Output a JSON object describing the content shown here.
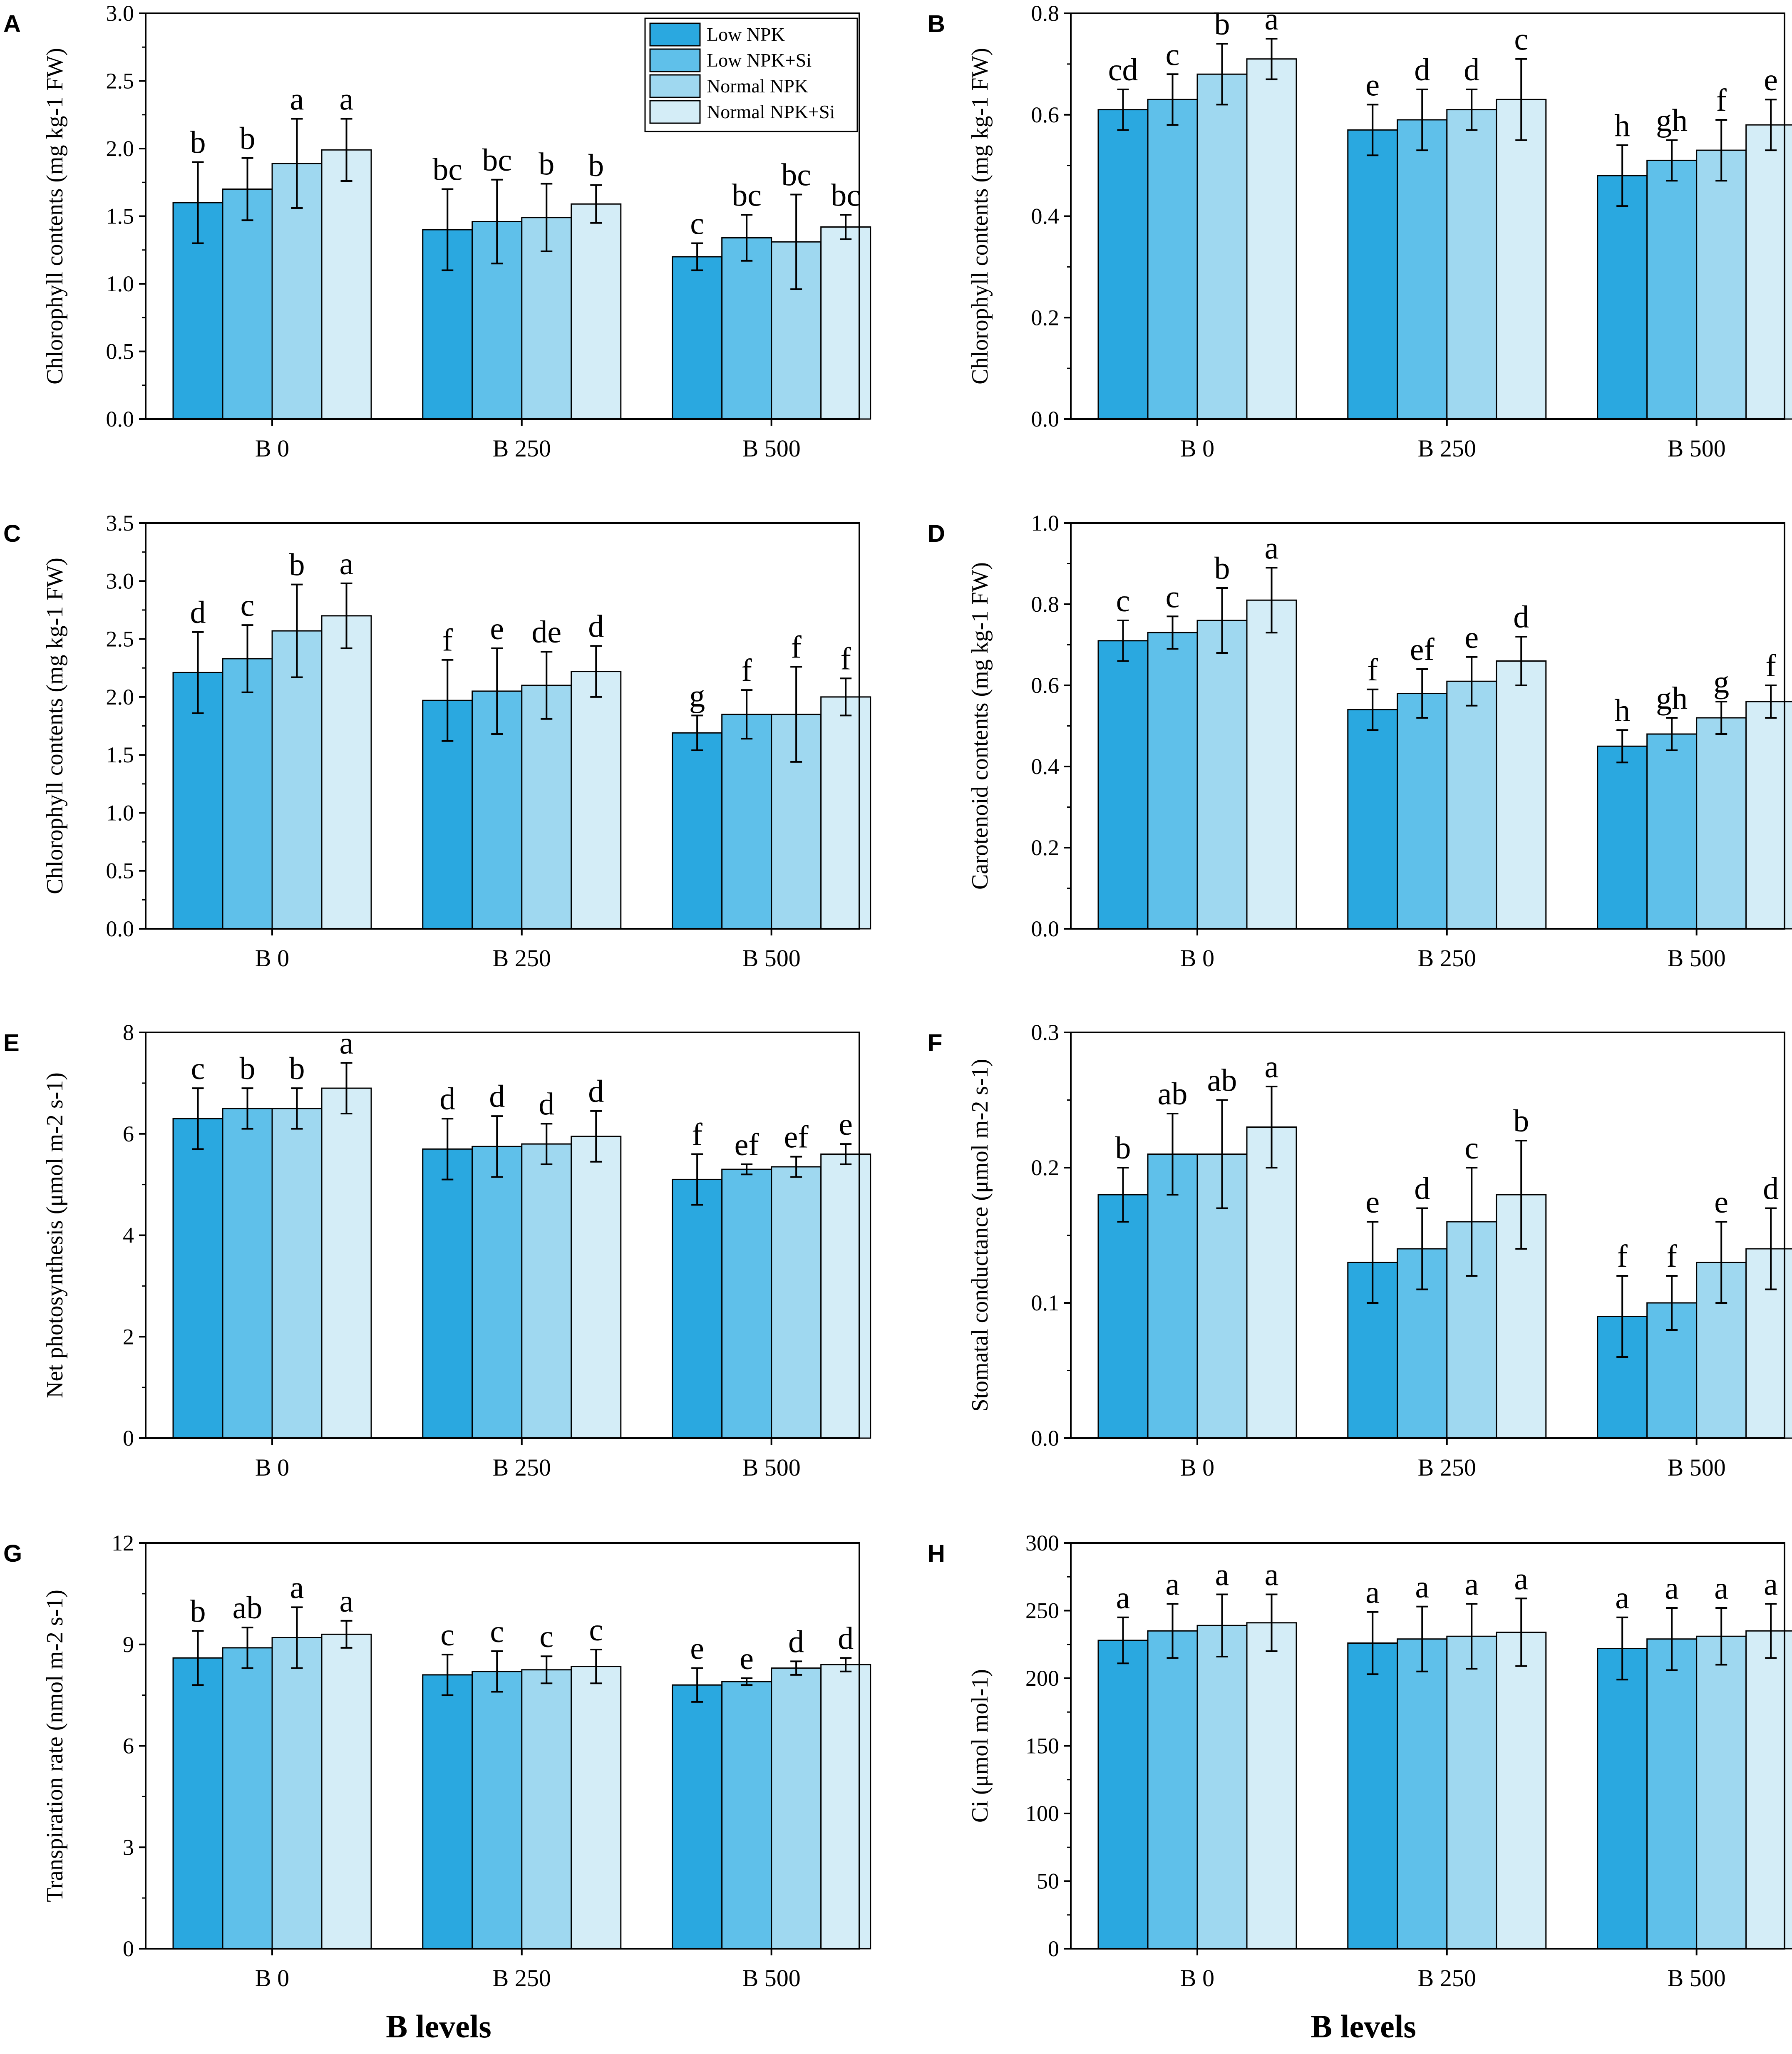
{
  "figure": {
    "legend": [
      "Low NPK",
      "Low NPK+Si",
      "Normal NPK",
      "Normal NPK+Si"
    ],
    "xlabel_bottom_left": "B levels",
    "xlabel_bottom_right": "B levels"
  },
  "colors": {
    "series": [
      "#2aa8e0",
      "#5fc0ea",
      "#9fd8f0",
      "#d4edf7"
    ],
    "axis": "#000000",
    "background": "#ffffff"
  },
  "chart_data": [
    {
      "panel": "A",
      "type": "bar",
      "ylabel": "Chlorophyll contents (mg kg-1 FW)",
      "ylim": [
        0,
        3.0
      ],
      "yticks": [
        0.0,
        0.5,
        1.0,
        1.5,
        2.0,
        2.5,
        3.0
      ],
      "ytick_labels": [
        "0.0",
        "0.5",
        "1.0",
        "1.5",
        "2.0",
        "2.5",
        "3.0"
      ],
      "categories": [
        "B 0",
        "B 250",
        "B 500"
      ],
      "legend": true,
      "series": [
        {
          "name": "Low NPK",
          "values": [
            1.6,
            1.4,
            1.2
          ],
          "errors": [
            0.3,
            0.3,
            0.1
          ],
          "letters": [
            "b",
            "bc",
            "c"
          ]
        },
        {
          "name": "Low NPK+Si",
          "values": [
            1.7,
            1.46,
            1.34
          ],
          "errors": [
            0.23,
            0.31,
            0.17
          ],
          "letters": [
            "b",
            "bc",
            "bc"
          ]
        },
        {
          "name": "Normal NPK",
          "values": [
            1.89,
            1.49,
            1.31
          ],
          "errors": [
            0.33,
            0.25,
            0.35
          ],
          "letters": [
            "a",
            "b",
            "bc"
          ]
        },
        {
          "name": "Normal NPK+Si",
          "values": [
            1.99,
            1.59,
            1.42
          ],
          "errors": [
            0.23,
            0.14,
            0.09
          ],
          "letters": [
            "a",
            "b",
            "bc"
          ]
        }
      ]
    },
    {
      "panel": "B",
      "type": "bar",
      "ylabel": "Chlorophyll contents (mg kg-1 FW)",
      "ylim": [
        0,
        0.8
      ],
      "yticks": [
        0.0,
        0.2,
        0.4,
        0.6,
        0.8
      ],
      "ytick_labels": [
        "0.0",
        "0.2",
        "0.4",
        "0.6",
        "0.8"
      ],
      "categories": [
        "B 0",
        "B 250",
        "B 500"
      ],
      "legend": false,
      "series": [
        {
          "name": "Low NPK",
          "values": [
            0.61,
            0.57,
            0.48
          ],
          "errors": [
            0.04,
            0.05,
            0.06
          ],
          "letters": [
            "cd",
            "e",
            "h"
          ]
        },
        {
          "name": "Low NPK+Si",
          "values": [
            0.63,
            0.59,
            0.51
          ],
          "errors": [
            0.05,
            0.06,
            0.04
          ],
          "letters": [
            "c",
            "d",
            "gh"
          ]
        },
        {
          "name": "Normal NPK",
          "values": [
            0.68,
            0.61,
            0.53
          ],
          "errors": [
            0.06,
            0.04,
            0.06
          ],
          "letters": [
            "b",
            "d",
            "f"
          ]
        },
        {
          "name": "Normal NPK+Si",
          "values": [
            0.71,
            0.63,
            0.58
          ],
          "errors": [
            0.04,
            0.08,
            0.05
          ],
          "letters": [
            "a",
            "c",
            "e"
          ]
        }
      ]
    },
    {
      "panel": "C",
      "type": "bar",
      "ylabel": "Chlorophyll contents (mg kg-1 FW)",
      "ylim": [
        0,
        3.5
      ],
      "yticks": [
        0.0,
        0.5,
        1.0,
        1.5,
        2.0,
        2.5,
        3.0,
        3.5
      ],
      "ytick_labels": [
        "0.0",
        "0.5",
        "1.0",
        "1.5",
        "2.0",
        "2.5",
        "3.0",
        "3.5"
      ],
      "categories": [
        "B 0",
        "B 250",
        "B 500"
      ],
      "legend": false,
      "series": [
        {
          "name": "Low NPK",
          "values": [
            2.21,
            1.97,
            1.69
          ],
          "errors": [
            0.35,
            0.35,
            0.15
          ],
          "letters": [
            "d",
            "f",
            "g"
          ]
        },
        {
          "name": "Low NPK+Si",
          "values": [
            2.33,
            2.05,
            1.85
          ],
          "errors": [
            0.29,
            0.37,
            0.21
          ],
          "letters": [
            "c",
            "e",
            "f"
          ]
        },
        {
          "name": "Normal NPK",
          "values": [
            2.57,
            2.1,
            1.85
          ],
          "errors": [
            0.4,
            0.29,
            0.41
          ],
          "letters": [
            "b",
            "de",
            "f"
          ]
        },
        {
          "name": "Normal NPK+Si",
          "values": [
            2.7,
            2.22,
            2.0
          ],
          "errors": [
            0.28,
            0.22,
            0.16
          ],
          "letters": [
            "a",
            "d",
            "f"
          ]
        }
      ]
    },
    {
      "panel": "D",
      "type": "bar",
      "ylabel": "Carotenoid contents (mg kg-1 FW)",
      "ylim": [
        0,
        1.0
      ],
      "yticks": [
        0.0,
        0.2,
        0.4,
        0.6,
        0.8,
        1.0
      ],
      "ytick_labels": [
        "0.0",
        "0.2",
        "0.4",
        "0.6",
        "0.8",
        "1.0"
      ],
      "categories": [
        "B 0",
        "B 250",
        "B 500"
      ],
      "legend": false,
      "series": [
        {
          "name": "Low NPK",
          "values": [
            0.71,
            0.54,
            0.45
          ],
          "errors": [
            0.05,
            0.05,
            0.04
          ],
          "letters": [
            "c",
            "f",
            "h"
          ]
        },
        {
          "name": "Low NPK+Si",
          "values": [
            0.73,
            0.58,
            0.48
          ],
          "errors": [
            0.04,
            0.06,
            0.04
          ],
          "letters": [
            "c",
            "ef",
            "gh"
          ]
        },
        {
          "name": "Normal NPK",
          "values": [
            0.76,
            0.61,
            0.52
          ],
          "errors": [
            0.08,
            0.06,
            0.04
          ],
          "letters": [
            "b",
            "e",
            "g"
          ]
        },
        {
          "name": "Normal NPK+Si",
          "values": [
            0.81,
            0.66,
            0.56
          ],
          "errors": [
            0.08,
            0.06,
            0.04
          ],
          "letters": [
            "a",
            "d",
            "f"
          ]
        }
      ]
    },
    {
      "panel": "E",
      "type": "bar",
      "ylabel": "Net photosynthesis (μmol m-2 s-1)",
      "ylim": [
        0,
        8
      ],
      "yticks": [
        0,
        2,
        4,
        6,
        8
      ],
      "ytick_labels": [
        "0",
        "2",
        "4",
        "6",
        "8"
      ],
      "categories": [
        "B 0",
        "B 250",
        "B 500"
      ],
      "legend": false,
      "series": [
        {
          "name": "Low NPK",
          "values": [
            6.3,
            5.7,
            5.1
          ],
          "errors": [
            0.6,
            0.6,
            0.5
          ],
          "letters": [
            "c",
            "d",
            "f"
          ]
        },
        {
          "name": "Low NPK+Si",
          "values": [
            6.5,
            5.75,
            5.3
          ],
          "errors": [
            0.4,
            0.6,
            0.1
          ],
          "letters": [
            "b",
            "d",
            "ef"
          ]
        },
        {
          "name": "Normal NPK",
          "values": [
            6.5,
            5.8,
            5.35
          ],
          "errors": [
            0.4,
            0.4,
            0.2
          ],
          "letters": [
            "b",
            "d",
            "ef"
          ]
        },
        {
          "name": "Normal NPK+Si",
          "values": [
            6.9,
            5.95,
            5.6
          ],
          "errors": [
            0.5,
            0.5,
            0.2
          ],
          "letters": [
            "a",
            "d",
            "e"
          ]
        }
      ]
    },
    {
      "panel": "F",
      "type": "bar",
      "ylabel": "Stomatal conductance (μmol m-2 s-1)",
      "ylim": [
        0,
        0.3
      ],
      "yticks": [
        0.0,
        0.1,
        0.2,
        0.3
      ],
      "ytick_labels": [
        "0.0",
        "0.1",
        "0.2",
        "0.3"
      ],
      "categories": [
        "B 0",
        "B 250",
        "B 500"
      ],
      "legend": false,
      "series": [
        {
          "name": "Low NPK",
          "values": [
            0.18,
            0.13,
            0.09
          ],
          "errors": [
            0.02,
            0.03,
            0.03
          ],
          "letters": [
            "b",
            "e",
            "f"
          ]
        },
        {
          "name": "Low NPK+Si",
          "values": [
            0.21,
            0.14,
            0.1
          ],
          "errors": [
            0.03,
            0.03,
            0.02
          ],
          "letters": [
            "ab",
            "d",
            "f"
          ]
        },
        {
          "name": "Normal NPK",
          "values": [
            0.21,
            0.16,
            0.13
          ],
          "errors": [
            0.04,
            0.04,
            0.03
          ],
          "letters": [
            "ab",
            "c",
            "e"
          ]
        },
        {
          "name": "Normal NPK+Si",
          "values": [
            0.23,
            0.18,
            0.14
          ],
          "errors": [
            0.03,
            0.04,
            0.03
          ],
          "letters": [
            "a",
            "b",
            "d"
          ]
        }
      ]
    },
    {
      "panel": "G",
      "type": "bar",
      "ylabel": "Transpiration rate (nmol m-2 s-1)",
      "ylim": [
        0,
        12
      ],
      "yticks": [
        0,
        3,
        6,
        9,
        12
      ],
      "ytick_labels": [
        "0",
        "3",
        "6",
        "9",
        "12"
      ],
      "categories": [
        "B 0",
        "B 250",
        "B 500"
      ],
      "legend": false,
      "series": [
        {
          "name": "Low NPK",
          "values": [
            8.6,
            8.1,
            7.8
          ],
          "errors": [
            0.8,
            0.6,
            0.5
          ],
          "letters": [
            "b",
            "c",
            "e"
          ]
        },
        {
          "name": "Low NPK+Si",
          "values": [
            8.9,
            8.2,
            7.9
          ],
          "errors": [
            0.6,
            0.6,
            0.1
          ],
          "letters": [
            "ab",
            "c",
            "e"
          ]
        },
        {
          "name": "Normal NPK",
          "values": [
            9.2,
            8.25,
            8.3
          ],
          "errors": [
            0.9,
            0.4,
            0.2
          ],
          "letters": [
            "a",
            "c",
            "d"
          ]
        },
        {
          "name": "Normal NPK+Si",
          "values": [
            9.3,
            8.35,
            8.4
          ],
          "errors": [
            0.4,
            0.5,
            0.2
          ],
          "letters": [
            "a",
            "c",
            "d"
          ]
        }
      ]
    },
    {
      "panel": "H",
      "type": "bar",
      "ylabel": "Ci (μmol mol-1)",
      "ylim": [
        0,
        300
      ],
      "yticks": [
        0,
        50,
        100,
        150,
        200,
        250,
        300
      ],
      "ytick_labels": [
        "0",
        "50",
        "100",
        "150",
        "200",
        "250",
        "300"
      ],
      "categories": [
        "B 0",
        "B 250",
        "B 500"
      ],
      "legend": false,
      "series": [
        {
          "name": "Low NPK",
          "values": [
            228,
            226,
            222
          ],
          "errors": [
            17,
            23,
            23
          ],
          "letters": [
            "a",
            "a",
            "a"
          ]
        },
        {
          "name": "Low NPK+Si",
          "values": [
            235,
            229,
            229
          ],
          "errors": [
            20,
            24,
            23
          ],
          "letters": [
            "a",
            "a",
            "a"
          ]
        },
        {
          "name": "Normal NPK",
          "values": [
            239,
            231,
            231
          ],
          "errors": [
            23,
            24,
            21
          ],
          "letters": [
            "a",
            "a",
            "a"
          ]
        },
        {
          "name": "Normal NPK+Si",
          "values": [
            241,
            234,
            235
          ],
          "errors": [
            21,
            25,
            20
          ],
          "letters": [
            "a",
            "a",
            "a"
          ]
        }
      ]
    }
  ]
}
